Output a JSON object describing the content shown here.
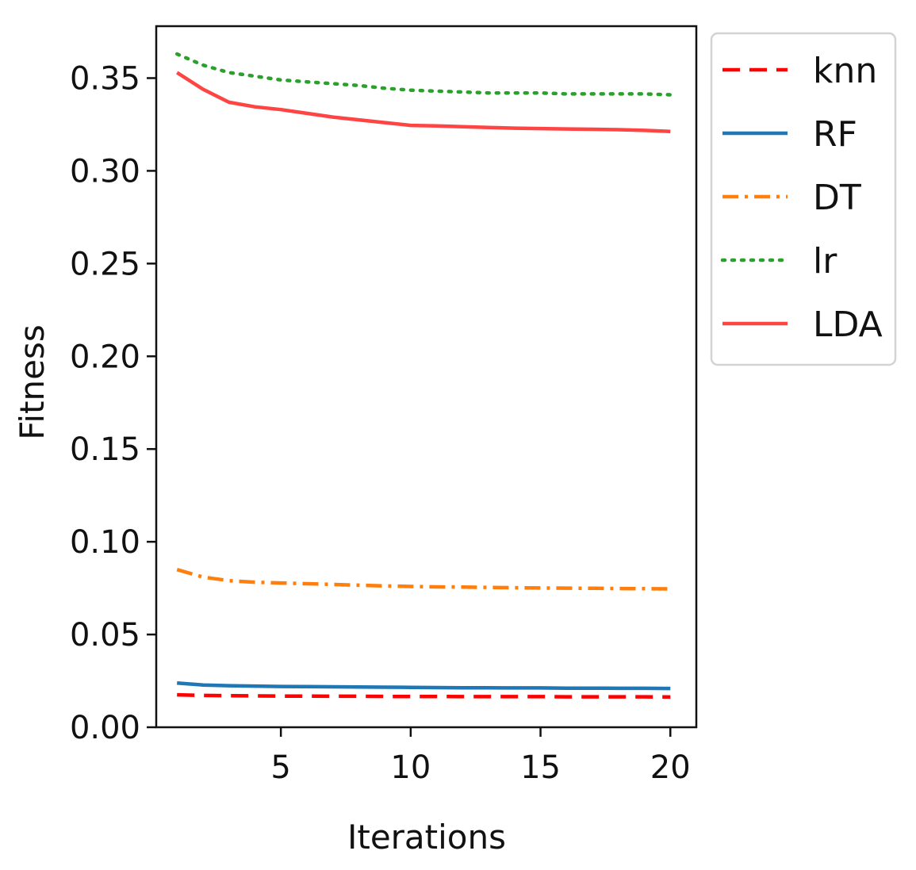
{
  "chart_data": {
    "type": "line",
    "title": "",
    "xlabel": "Iterations",
    "ylabel": "Fitness",
    "xlim": [
      0.2,
      21.0
    ],
    "ylim": [
      0.0,
      0.378
    ],
    "xticks": [
      5,
      10,
      15,
      20
    ],
    "xtick_labels": [
      "5",
      "10",
      "15",
      "20"
    ],
    "yticks": [
      0.0,
      0.05,
      0.1,
      0.15,
      0.2,
      0.25,
      0.3,
      0.35
    ],
    "ytick_labels": [
      "0.00",
      "0.05",
      "0.10",
      "0.15",
      "0.20",
      "0.25",
      "0.30",
      "0.35"
    ],
    "grid": false,
    "legend_position": "outside-top-right",
    "x": [
      1,
      2,
      3,
      4,
      5,
      6,
      7,
      8,
      9,
      10,
      11,
      12,
      13,
      14,
      15,
      16,
      17,
      18,
      19,
      20
    ],
    "series": [
      {
        "name": "knn",
        "color": "#ff0000",
        "style": "dashed",
        "values": [
          0.0175,
          0.0172,
          0.017,
          0.0169,
          0.0168,
          0.0168,
          0.0167,
          0.0167,
          0.0166,
          0.0166,
          0.0166,
          0.0165,
          0.0165,
          0.0165,
          0.0165,
          0.0164,
          0.0164,
          0.0164,
          0.0164,
          0.0163
        ]
      },
      {
        "name": "RF",
        "color": "#1f77b4",
        "style": "solid",
        "values": [
          0.0238,
          0.0228,
          0.0224,
          0.0222,
          0.022,
          0.0219,
          0.0218,
          0.0217,
          0.0216,
          0.0215,
          0.0214,
          0.0213,
          0.0213,
          0.0212,
          0.0212,
          0.0211,
          0.0211,
          0.021,
          0.021,
          0.0209
        ]
      },
      {
        "name": "DT",
        "color": "#ff7f0e",
        "style": "dashdot",
        "values": [
          0.085,
          0.081,
          0.079,
          0.0782,
          0.0778,
          0.0774,
          0.077,
          0.0766,
          0.0762,
          0.0759,
          0.0757,
          0.0756,
          0.0754,
          0.0752,
          0.0751,
          0.075,
          0.0749,
          0.0748,
          0.0747,
          0.0746
        ]
      },
      {
        "name": "lr",
        "color": "#2ca02c",
        "style": "dotted",
        "values": [
          0.363,
          0.357,
          0.353,
          0.351,
          0.349,
          0.348,
          0.347,
          0.346,
          0.3445,
          0.3435,
          0.343,
          0.3425,
          0.342,
          0.342,
          0.342,
          0.3415,
          0.3415,
          0.3415,
          0.3415,
          0.341
        ]
      },
      {
        "name": "LDA",
        "color": "#ff4444",
        "style": "solid",
        "values": [
          0.353,
          0.344,
          0.337,
          0.3345,
          0.333,
          0.331,
          0.329,
          0.3275,
          0.326,
          0.3245,
          0.3242,
          0.3238,
          0.3234,
          0.323,
          0.3228,
          0.3226,
          0.3224,
          0.3222,
          0.3218,
          0.3212
        ]
      }
    ]
  }
}
